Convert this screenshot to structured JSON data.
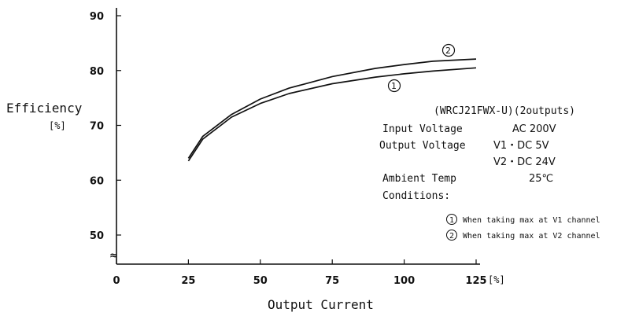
{
  "chart_data": {
    "type": "line",
    "xlabel": "Output Current",
    "xunit": "[%]",
    "ylabel": "Efficiency",
    "yunit": "[%]",
    "x_ticks": [
      0,
      25,
      50,
      75,
      100,
      125
    ],
    "y_ticks": [
      50,
      60,
      70,
      80,
      90
    ],
    "xlim": [
      0,
      125
    ],
    "ylim": [
      45,
      92
    ],
    "break_symbol": "≈",
    "series": [
      {
        "name": "①",
        "x": [
          25,
          30,
          40,
          50,
          60,
          75,
          90,
          100,
          110,
          125
        ],
        "y": [
          63.5,
          67.5,
          71.5,
          74.0,
          75.8,
          77.6,
          78.8,
          79.4,
          79.9,
          80.5
        ]
      },
      {
        "name": "②",
        "x": [
          25,
          30,
          40,
          50,
          60,
          75,
          90,
          100,
          110,
          125
        ],
        "y": [
          64.0,
          68.0,
          72.0,
          74.8,
          76.8,
          78.9,
          80.4,
          81.1,
          81.7,
          82.1
        ]
      }
    ],
    "annotations": {
      "model": "(WRCJ21FWX-U)(2outputs)",
      "input_voltage_label": "Input Voltage",
      "input_voltage_value": "AC 200V",
      "output_voltage_label": "Output Voltage",
      "output_voltage_v1": "V1・DC 5V",
      "output_voltage_v2": "V2・DC 24V",
      "ambient_label": "Ambient Temp",
      "ambient_value": "25℃",
      "conditions_label": "Conditions:",
      "note1_marker": "①",
      "note1": "When taking max at V1 channel",
      "note2_marker": "②",
      "note2": "When taking max at V2 channel"
    }
  }
}
